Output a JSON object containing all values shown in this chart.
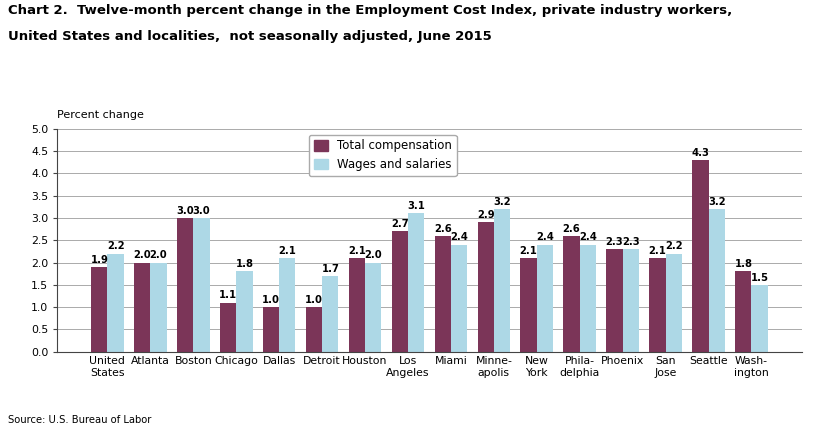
{
  "title_line1": "Chart 2.  Twelve-month percent change in the Employment Cost Index, private industry workers,",
  "title_line2": "United States and localities,  not seasonally adjusted, June 2015",
  "ylabel": "Percent change",
  "source": "Source: U.S. Bureau of Labor",
  "categories": [
    "United\nStates",
    "Atlanta",
    "Boston",
    "Chicago",
    "Dallas",
    "Detroit",
    "Houston",
    "Los\nAngeles",
    "Miami",
    "Minne-\napolis",
    "New\nYork",
    "Phila-\ndelphia",
    "Phoenix",
    "San\nJose",
    "Seattle",
    "Wash-\nington"
  ],
  "total_compensation": [
    1.9,
    2.0,
    3.0,
    1.1,
    1.0,
    1.0,
    2.1,
    2.7,
    2.6,
    2.9,
    2.1,
    2.6,
    2.3,
    2.1,
    4.3,
    1.8
  ],
  "wages_salaries": [
    2.2,
    2.0,
    3.0,
    1.8,
    2.1,
    1.7,
    2.0,
    3.1,
    2.4,
    3.2,
    2.4,
    2.4,
    2.3,
    2.2,
    3.2,
    1.5
  ],
  "total_comp_color": "#7B3558",
  "wages_color": "#ADD8E6",
  "ylim": [
    0.0,
    5.0
  ],
  "yticks": [
    0.0,
    0.5,
    1.0,
    1.5,
    2.0,
    2.5,
    3.0,
    3.5,
    4.0,
    4.5,
    5.0
  ],
  "bar_width": 0.38,
  "label_fontsize": 7.2,
  "tick_fontsize": 7.8,
  "title_fontsize": 9.5,
  "legend_fontsize": 8.5,
  "background_color": "#ffffff",
  "grid_color": "#aaaaaa"
}
